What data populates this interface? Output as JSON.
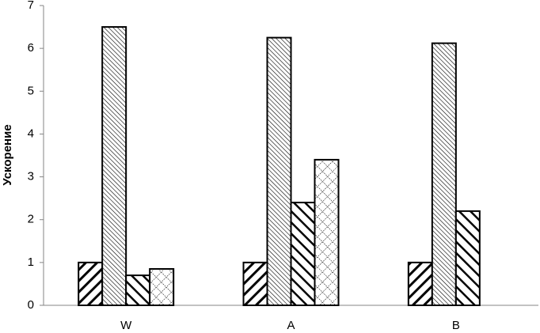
{
  "chart_data": {
    "type": "bar",
    "y_label": "Ускорение",
    "categories": [
      "W",
      "A",
      "B"
    ],
    "series": [
      {
        "color": "#000000",
        "pattern": "wide-upward-diagonal",
        "values": [
          1,
          1,
          1
        ]
      },
      {
        "color": "#000000",
        "pattern": "dense-downward-diagonal",
        "values": [
          6.5,
          6.25,
          6.12
        ]
      },
      {
        "color": "#000000",
        "pattern": "wide-downward-diagonal",
        "values": [
          0.7,
          2.4,
          2.2
        ]
      },
      {
        "color": "#000000",
        "pattern": "dotted-grid",
        "values": [
          0.85,
          3.4,
          null
        ]
      }
    ],
    "ylim": [
      0,
      7
    ],
    "yticks": [
      0,
      1,
      2,
      3,
      4,
      5,
      6,
      7
    ],
    "grid": false
  }
}
